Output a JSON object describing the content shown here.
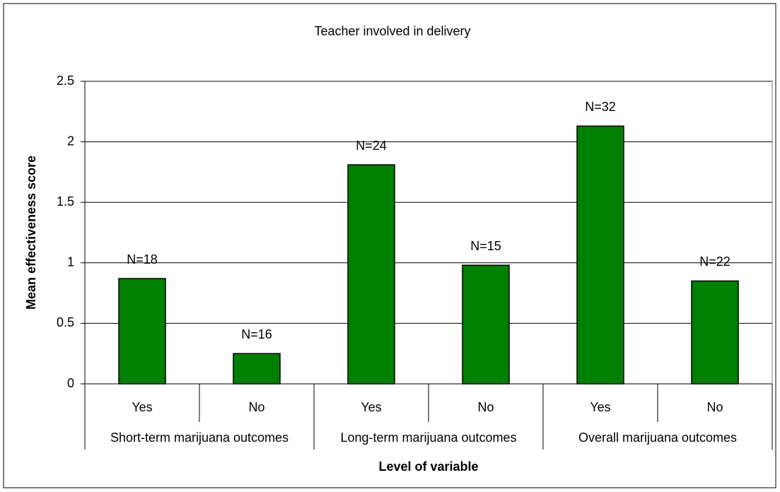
{
  "chart_data": {
    "type": "bar",
    "title": "Teacher involved in delivery",
    "categories": [
      "Yes",
      "No",
      "Yes",
      "No",
      "Yes",
      "No"
    ],
    "groups": [
      "Short-term marijuana outcomes",
      "Long-term marijuana outcomes",
      "Overall marijuana outcomes"
    ],
    "values": [
      0.87,
      0.25,
      1.81,
      0.98,
      2.13,
      0.85
    ],
    "annotations": [
      "N=18",
      "N=16",
      "N=24",
      "N=15",
      "N=32",
      "N=22"
    ],
    "color": "#008000",
    "xlabel": "Level of variable",
    "ylabel": "Mean effectiveness score",
    "ylim": [
      0,
      2.5
    ],
    "yticks": [
      0,
      0.5,
      1,
      1.5,
      2,
      2.5
    ],
    "grid": true
  }
}
